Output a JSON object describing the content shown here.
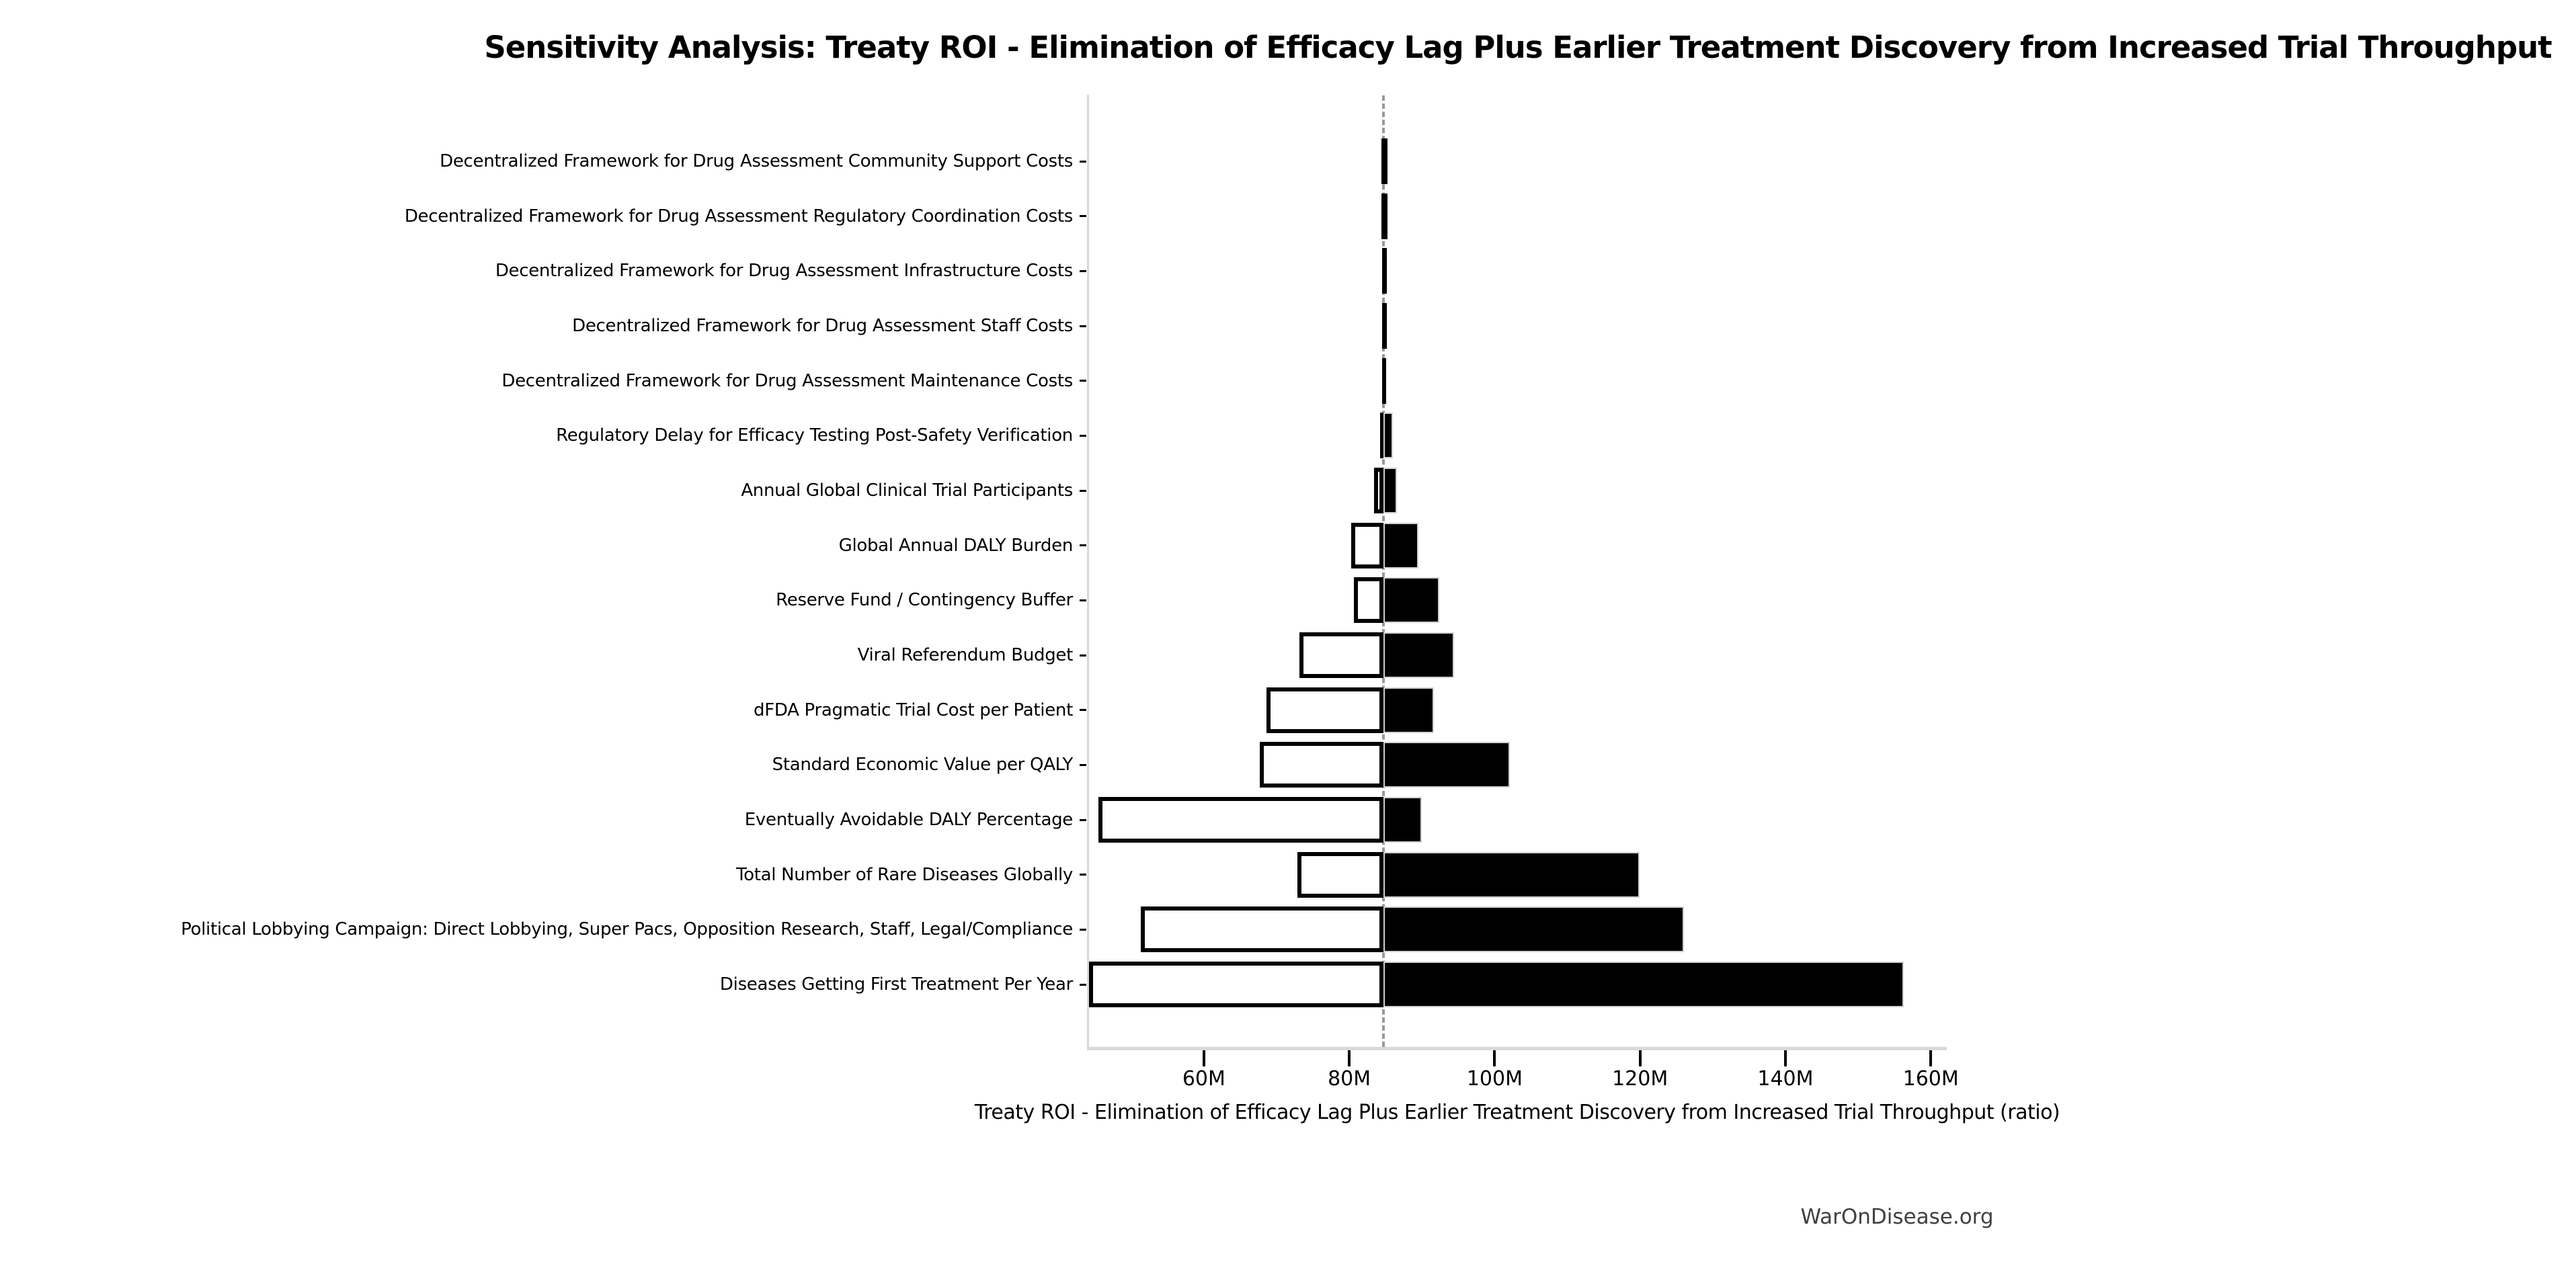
{
  "title": "Sensitivity Analysis: Treaty ROI - Elimination of Efficacy Lag Plus Earlier Treatment Discovery from Increased Trial Throughput",
  "xlabel": "Treaty ROI - Elimination of Efficacy Lag Plus Earlier Treatment Discovery from Increased Trial Throughput (ratio)",
  "footer": "WarOnDisease.org",
  "chart_data": {
    "type": "bar",
    "subtype": "tornado",
    "orientation": "horizontal",
    "title": "Sensitivity Analysis: Treaty ROI - Elimination of Efficacy Lag Plus Earlier Treatment Discovery from Increased Trial Throughput",
    "xlabel": "Treaty ROI - Elimination of Efficacy Lag Plus Earlier Treatment Discovery from Increased Trial Throughput (ratio)",
    "baseline": 84.7,
    "xlim": [
      44.2,
      162.2
    ],
    "xticks": [
      60,
      80,
      100,
      120,
      140,
      160
    ],
    "xtick_labels": [
      "60M",
      "80M",
      "100M",
      "120M",
      "140M",
      "160M"
    ],
    "grid": false,
    "legend": "none",
    "categories": [
      "Decentralized Framework for Drug Assessment Community Support Costs",
      "Decentralized Framework for Drug Assessment Regulatory Coordination Costs",
      "Decentralized Framework for Drug Assessment Infrastructure Costs",
      "Decentralized Framework for Drug Assessment Staff Costs",
      "Decentralized Framework for Drug Assessment Maintenance Costs",
      "Regulatory Delay for Efficacy Testing Post-Safety Verification",
      "Annual Global Clinical Trial Participants",
      "Global Annual DALY Burden",
      "Reserve Fund / Contingency Buffer",
      "Viral Referendum Budget",
      "dFDA Pragmatic Trial Cost per Patient",
      "Standard Economic Value per QALY",
      "Eventually Avoidable DALY Percentage",
      "Total Number of Rare Diseases Globally",
      "Political Lobbying Campaign: Direct Lobbying, Super Pacs, Opposition Research, Staff, Legal/Compliance",
      "Diseases Getting First Treatment Per Year"
    ],
    "series": [
      {
        "name": "low_value_M",
        "values": [
          84.4,
          84.4,
          84.5,
          84.5,
          84.55,
          84.2,
          83.4,
          80.3,
          80.6,
          73.1,
          68.6,
          67.7,
          45.5,
          72.9,
          51.3,
          44.2
        ]
      },
      {
        "name": "high_value_M",
        "values": [
          85.3,
          85.3,
          85.2,
          85.2,
          85.1,
          86.0,
          86.6,
          89.5,
          92.4,
          94.4,
          91.6,
          102.1,
          90.0,
          119.9,
          126.0,
          156.3
        ]
      }
    ],
    "colors": {
      "low_bar_fill": "#ffffff",
      "low_bar_edge": "#000000",
      "high_bar_fill": "#000000",
      "high_bar_edge": "#d0d0d0",
      "baseline_line": "#999999",
      "spine": "#d9d9d9",
      "tick": "#000000",
      "text": "#000000",
      "footer_text": "#404040",
      "background": "#ffffff"
    }
  }
}
